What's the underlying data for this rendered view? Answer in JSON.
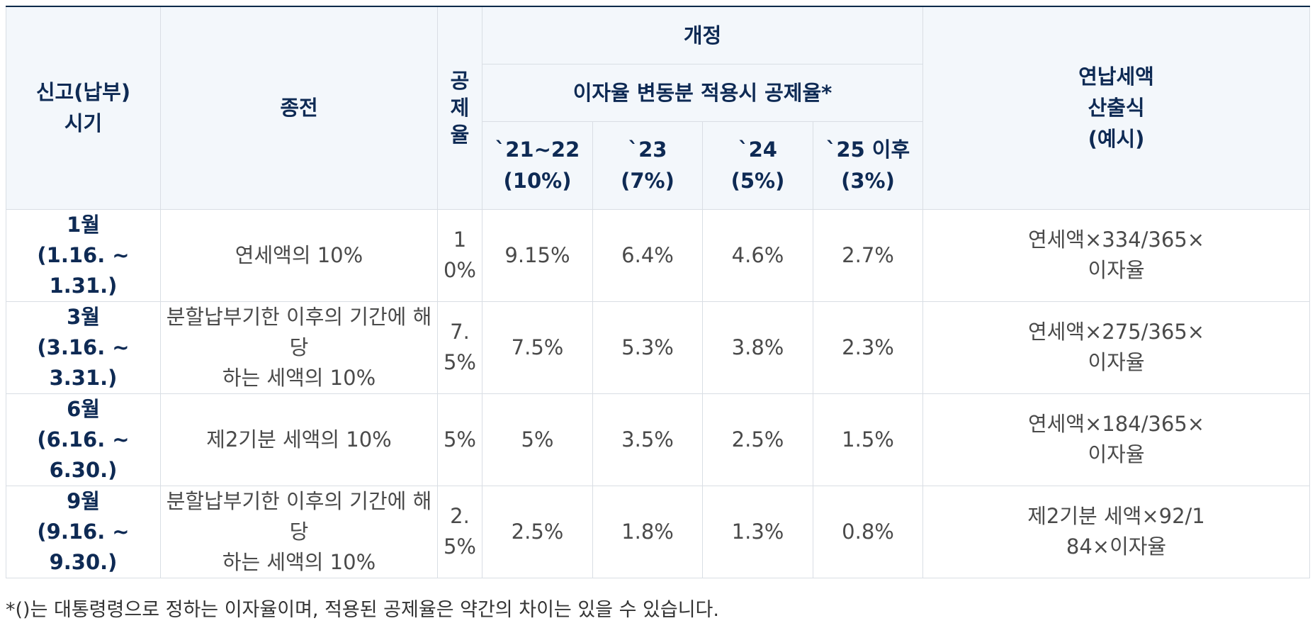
{
  "header": {
    "period": [
      "신고(납부)",
      "시기"
    ],
    "old": "종전",
    "rate": [
      "공",
      "제",
      "율"
    ],
    "revision": "개정",
    "interest_label": "이자율 변동분 적용시 공제율*",
    "years": [
      {
        "year": "`21~22",
        "rate": "(10%)"
      },
      {
        "year": "`23",
        "rate": "(7%)"
      },
      {
        "year": "`24",
        "rate": "(5%)"
      },
      {
        "year": "`25 이후",
        "rate": "(3%)"
      }
    ],
    "formula": [
      "연납세액",
      "산출식",
      "(예시)"
    ]
  },
  "rows": [
    {
      "month": "1월",
      "range": "(1.16. ~ 1.31.)",
      "old": [
        "연세액의 10%"
      ],
      "rate": [
        "1",
        "0%"
      ],
      "values": [
        "9.15%",
        "6.4%",
        "4.6%",
        "2.7%"
      ],
      "formula": [
        "연세액×334/365×",
        "이자율"
      ]
    },
    {
      "month": "3월",
      "range": "(3.16. ~ 3.31.)",
      "old": [
        "분할납부기한 이후의 기간에 해당",
        "하는 세액의 10%"
      ],
      "rate": [
        "7.",
        "5%"
      ],
      "values": [
        "7.5%",
        "5.3%",
        "3.8%",
        "2.3%"
      ],
      "formula": [
        "연세액×275/365×",
        "이자율"
      ]
    },
    {
      "month": "6월",
      "range": "(6.16. ~ 6.30.)",
      "old": [
        "제2기분 세액의 10%"
      ],
      "rate": [
        "5%"
      ],
      "values": [
        "5%",
        "3.5%",
        "2.5%",
        "1.5%"
      ],
      "formula": [
        "연세액×184/365×",
        "이자율"
      ]
    },
    {
      "month": "9월",
      "range": "(9.16. ~ 9.30.)",
      "old": [
        "분할납부기한 이후의 기간에 해당",
        "하는 세액의 10%"
      ],
      "rate": [
        "2.",
        "5%"
      ],
      "values": [
        "2.5%",
        "1.8%",
        "1.3%",
        "0.8%"
      ],
      "formula": [
        "제2기분 세액×92/1",
        "84×이자율"
      ]
    }
  ],
  "footnote": "*()는 대통령령으로 정하는 이자율이며, 적용된 공제율은 약간의 차이는 있을 수 있습니다."
}
